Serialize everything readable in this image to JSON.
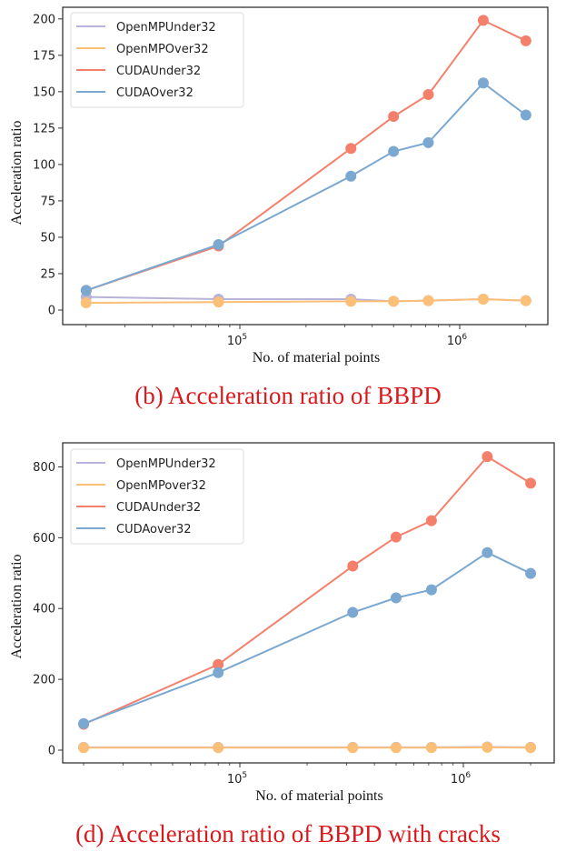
{
  "chart_data": [
    {
      "type": "line",
      "title": "",
      "caption": "(b) Acceleration ratio of BBPD",
      "xlabel": "No. of material points",
      "ylabel": "Acceleration ratio",
      "xscale": "log",
      "xlim": [
        15000,
        2800000
      ],
      "ylim": [
        -10,
        208
      ],
      "yticks": [
        0,
        25,
        50,
        75,
        100,
        125,
        150,
        175,
        200
      ],
      "xticks": [
        {
          "value": 100000,
          "base": "10",
          "exp": "5"
        },
        {
          "value": 1000000,
          "base": "10",
          "exp": "6"
        }
      ],
      "grid": false,
      "legend_position": "top-left",
      "x": [
        20000,
        80000,
        320000,
        500000,
        720000,
        1280000,
        2000000
      ],
      "series": [
        {
          "name": "OpenMPUnder32",
          "color": "#b8b3d9",
          "values": [
            9,
            7.5,
            7.5,
            6,
            6.5,
            7.5,
            6.5
          ]
        },
        {
          "name": "OpenMPOver32",
          "color": "#fbbf78",
          "values": [
            5,
            5.5,
            6,
            6,
            6.5,
            7.5,
            6.5
          ]
        },
        {
          "name": "CUDAUnder32",
          "color": "#f4806c",
          "values": [
            13.5,
            44,
            111,
            133,
            148,
            199,
            185
          ]
        },
        {
          "name": "CUDAOver32",
          "color": "#7aa8d1",
          "values": [
            13.5,
            45,
            92,
            109,
            115,
            156,
            134
          ]
        }
      ]
    },
    {
      "type": "line",
      "title": "",
      "caption": "(d) Acceleration ratio of BBPD with cracks",
      "xlabel": "No. of material points",
      "ylabel": "Acceleration ratio",
      "xscale": "log",
      "xlim": [
        15000,
        2800000
      ],
      "ylim": [
        -36,
        868
      ],
      "yticks": [
        0,
        200,
        400,
        600,
        800
      ],
      "xticks": [
        {
          "value": 100000,
          "base": "10",
          "exp": "5"
        },
        {
          "value": 1000000,
          "base": "10",
          "exp": "6"
        }
      ],
      "grid": false,
      "legend_position": "top-left",
      "x": [
        20000,
        80000,
        320000,
        500000,
        720000,
        1280000,
        2000000
      ],
      "series": [
        {
          "name": "OpenMPUnder32",
          "color": "#b8b3d9",
          "values": [
            8,
            8,
            8,
            8,
            8,
            9,
            8
          ]
        },
        {
          "name": "OpenMPover32",
          "color": "#fbbf78",
          "values": [
            7,
            7,
            7,
            7,
            7,
            8,
            7
          ]
        },
        {
          "name": "CUDAUnder32",
          "color": "#f4806c",
          "values": [
            73,
            242,
            520,
            602,
            648,
            829,
            754
          ]
        },
        {
          "name": "CUDAover32",
          "color": "#7aa8d1",
          "values": [
            75,
            219,
            389,
            430,
            453,
            558,
            499
          ]
        }
      ]
    }
  ]
}
